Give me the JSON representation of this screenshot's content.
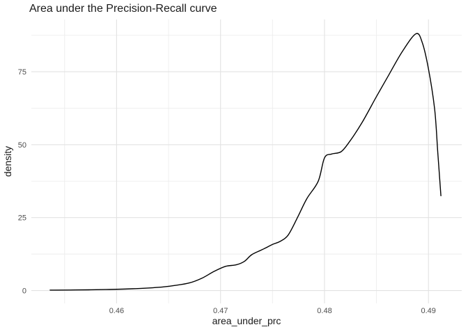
{
  "chart_data": {
    "type": "line",
    "subtype": "kernel-density",
    "title": "Area under the Precision-Recall curve",
    "xlabel": "area_under_prc",
    "ylabel": "density",
    "legend": "none",
    "grid": true,
    "xlim": [
      0.4518,
      0.4932
    ],
    "ylim": [
      -4.4,
      92.9
    ],
    "x_ticks": {
      "values": [
        0.46,
        0.47,
        0.48,
        0.49
      ],
      "labels": [
        "0.46",
        "0.47",
        "0.48",
        "0.49"
      ]
    },
    "y_ticks": {
      "values": [
        0,
        25,
        50,
        75
      ],
      "labels": [
        "0",
        "25",
        "50",
        "75"
      ]
    },
    "x_minor": [
      0.455,
      0.465,
      0.475,
      0.485
    ],
    "y_minor": [
      12.5,
      37.5,
      62.5,
      87.5
    ],
    "series": [
      {
        "name": "density",
        "points": [
          [
            0.4536,
            0.15
          ],
          [
            0.456,
            0.2
          ],
          [
            0.459,
            0.35
          ],
          [
            0.4615,
            0.6
          ],
          [
            0.464,
            1.1
          ],
          [
            0.4655,
            1.7
          ],
          [
            0.467,
            2.6
          ],
          [
            0.4682,
            4.2
          ],
          [
            0.4694,
            6.6
          ],
          [
            0.4705,
            8.3
          ],
          [
            0.4715,
            8.8
          ],
          [
            0.4723,
            10.0
          ],
          [
            0.473,
            12.3
          ],
          [
            0.474,
            14.0
          ],
          [
            0.475,
            15.8
          ],
          [
            0.4757,
            16.8
          ],
          [
            0.4765,
            19.0
          ],
          [
            0.4774,
            25.0
          ],
          [
            0.4783,
            31.5
          ],
          [
            0.4794,
            37.5
          ],
          [
            0.48,
            45.5
          ],
          [
            0.4807,
            46.8
          ],
          [
            0.4816,
            47.6
          ],
          [
            0.4824,
            51.0
          ],
          [
            0.4836,
            57.5
          ],
          [
            0.485,
            66.5
          ],
          [
            0.4862,
            74.0
          ],
          [
            0.4875,
            82.0
          ],
          [
            0.4888,
            88.0
          ],
          [
            0.4894,
            85.0
          ],
          [
            0.49,
            76.0
          ],
          [
            0.4906,
            62.0
          ],
          [
            0.4909,
            47.0
          ],
          [
            0.4912,
            32.5
          ]
        ]
      }
    ],
    "colors": {
      "curve": "#000000",
      "grid_major": "#e2e2e2",
      "grid_minor": "#ededed",
      "tick_label": "#4d4d4d",
      "axis_title": "#1a1a1a",
      "title": "#1a1a1a",
      "background": "#ffffff"
    }
  }
}
